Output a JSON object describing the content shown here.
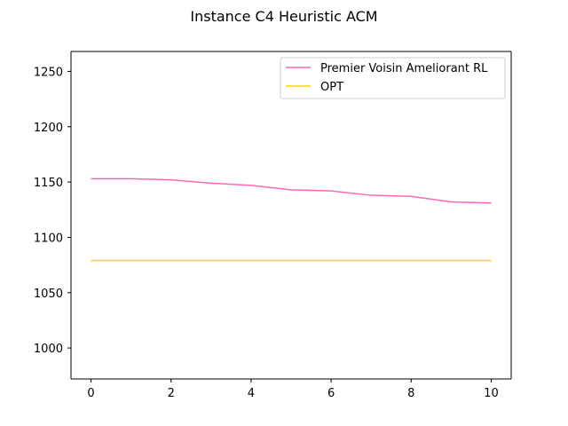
{
  "chart_data": {
    "type": "line",
    "title": "Instance C4 Heuristic ACM",
    "xlabel": "",
    "ylabel": "",
    "xlim": [
      -0.5,
      10.5
    ],
    "ylim": [
      972,
      1268
    ],
    "xticks": [
      0,
      2,
      4,
      6,
      8,
      10
    ],
    "yticks": [
      1000,
      1050,
      1100,
      1150,
      1200,
      1250
    ],
    "grid": false,
    "legend_position": "top-right",
    "series": [
      {
        "name": "Premier Voisin Ameliorant RL",
        "color": "#ff69b4",
        "x": [
          0,
          1,
          2,
          3,
          4,
          5,
          6,
          7,
          8,
          9,
          10
        ],
        "y": [
          1153,
          1153,
          1152,
          1149,
          1147,
          1143,
          1142,
          1138,
          1137,
          1132,
          1131
        ]
      },
      {
        "name": "OPT",
        "color": "#ffd700",
        "x": [
          0,
          10
        ],
        "y": [
          1079,
          1079
        ]
      }
    ]
  }
}
